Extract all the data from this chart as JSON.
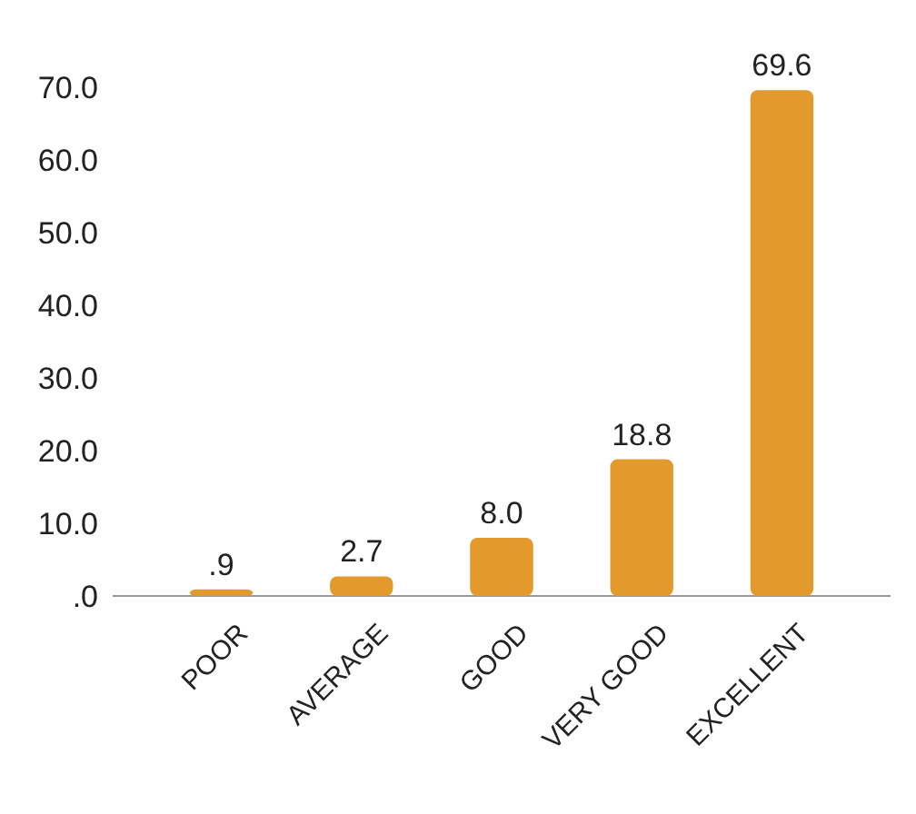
{
  "chart_data": {
    "type": "bar",
    "categories": [
      "POOR",
      "AVERAGE",
      "GOOD",
      "VERY GOOD",
      "EXCELLENT"
    ],
    "values": [
      0.9,
      2.7,
      8.0,
      18.8,
      69.6
    ],
    "value_labels": [
      ".9",
      "2.7",
      "8.0",
      "18.8",
      "69.6"
    ],
    "color": "#e39a2c",
    "ylim": [
      0,
      70
    ],
    "yticks": [
      {
        "value": 0,
        "label": ".0"
      },
      {
        "value": 10,
        "label": "10.0"
      },
      {
        "value": 20,
        "label": "20.0"
      },
      {
        "value": 30,
        "label": "30.0"
      },
      {
        "value": 40,
        "label": "40.0"
      },
      {
        "value": 50,
        "label": "50.0"
      },
      {
        "value": 60,
        "label": "60.0"
      },
      {
        "value": 70,
        "label": "70.0"
      }
    ],
    "grid": false
  }
}
